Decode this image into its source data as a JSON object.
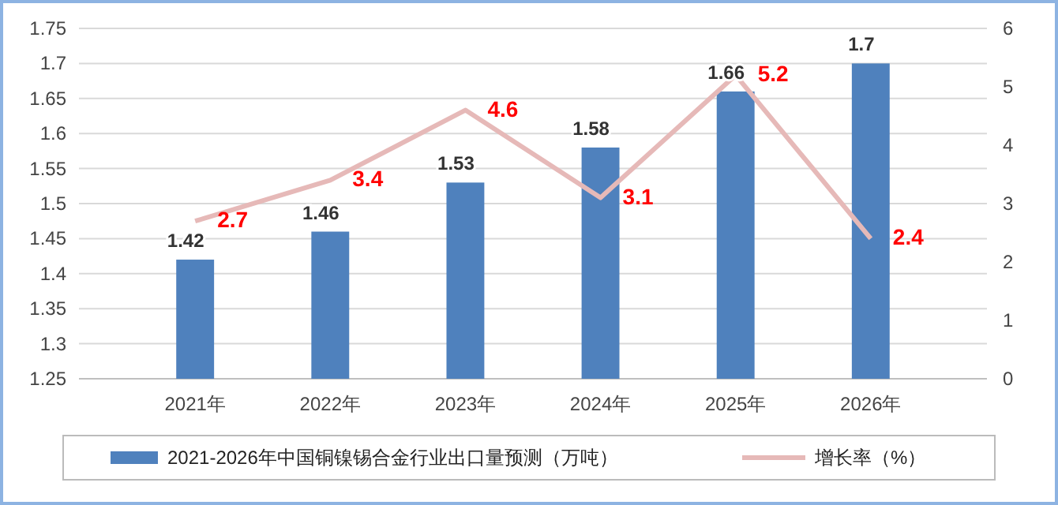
{
  "chart_data": {
    "type": "bar",
    "categories": [
      "2021年",
      "2022年",
      "2023年",
      "2024年",
      "2025年",
      "2026年"
    ],
    "series": [
      {
        "name": "2021-2026年中国铜镍锡合金行业出口量预测（万吨）",
        "color": "#4f81bd",
        "values": [
          1.42,
          1.46,
          1.53,
          1.58,
          1.66,
          1.7
        ]
      },
      {
        "name": "增长率（%）",
        "type": "line",
        "axis": "y2",
        "color": "#e6b9b8",
        "values": [
          2.7,
          3.4,
          4.6,
          3.1,
          5.2,
          2.4
        ]
      }
    ],
    "ylim": [
      1.25,
      1.75
    ],
    "yticks": [
      1.25,
      1.3,
      1.35,
      1.4,
      1.45,
      1.5,
      1.55,
      1.6,
      1.65,
      1.7,
      1.75
    ],
    "y2lim": [
      0,
      6
    ],
    "y2ticks": [
      0,
      1,
      2,
      3,
      4,
      5,
      6
    ],
    "grid": "y",
    "legend": "bottom",
    "data_labels": true,
    "marker": "none"
  }
}
